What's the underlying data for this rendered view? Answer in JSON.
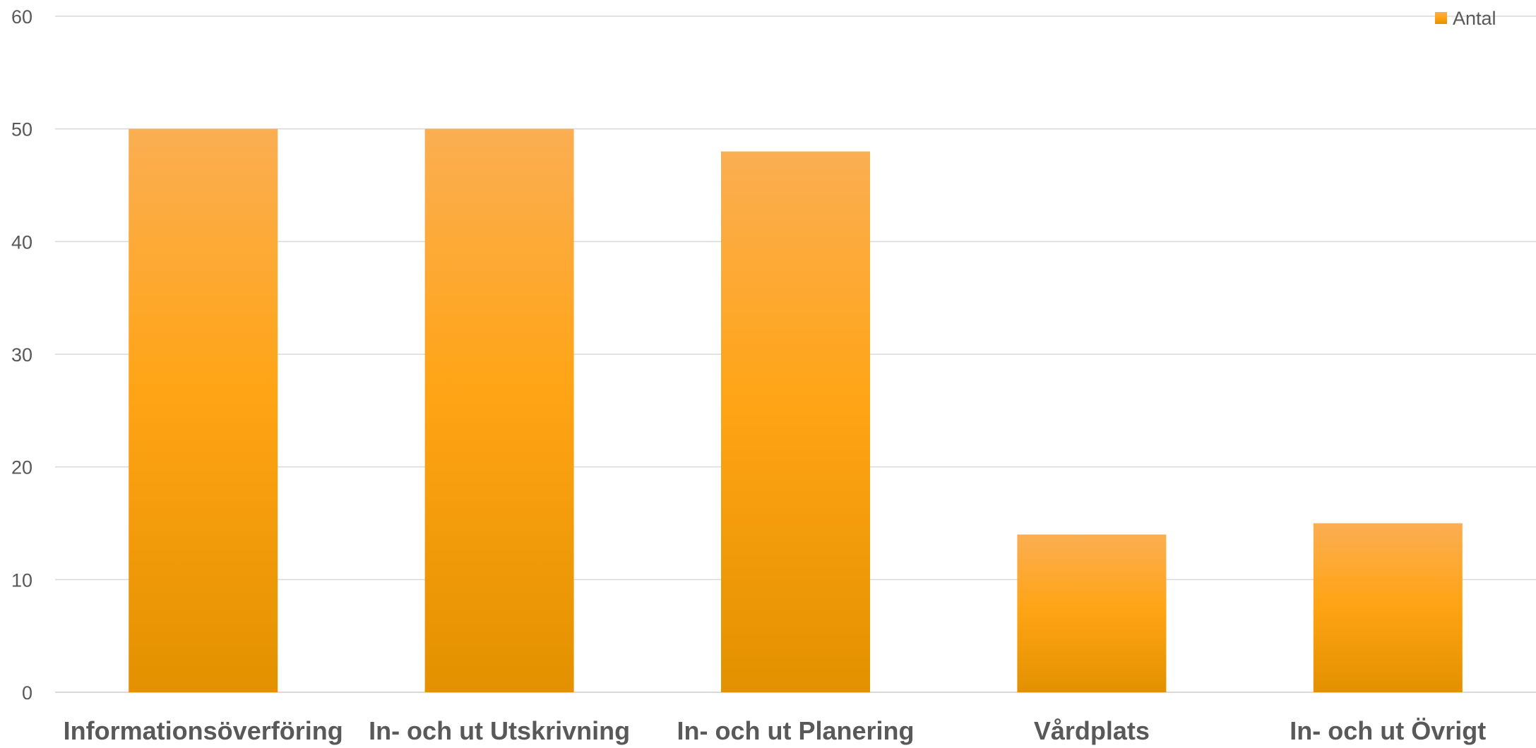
{
  "chart_data": {
    "type": "bar",
    "title": "",
    "xlabel": "",
    "ylabel": "",
    "categories": [
      "Informationsöverföring",
      "In- och ut Utskrivning",
      "In- och ut Planering",
      "Vårdplats",
      "In- och ut Övrigt"
    ],
    "series": [
      {
        "name": "Antal",
        "values": [
          50,
          50,
          48,
          14,
          15
        ]
      }
    ],
    "ylim": [
      0,
      60
    ],
    "yticks": [
      0,
      10,
      20,
      30,
      40,
      50,
      60
    ],
    "grid": true,
    "legend": "top-right",
    "colors": {
      "bar_top": "#FBAE52",
      "bar_mid": "#FFA414",
      "bar_bottom": "#E39100",
      "grid": "#D9D9D9",
      "text": "#595959"
    }
  }
}
